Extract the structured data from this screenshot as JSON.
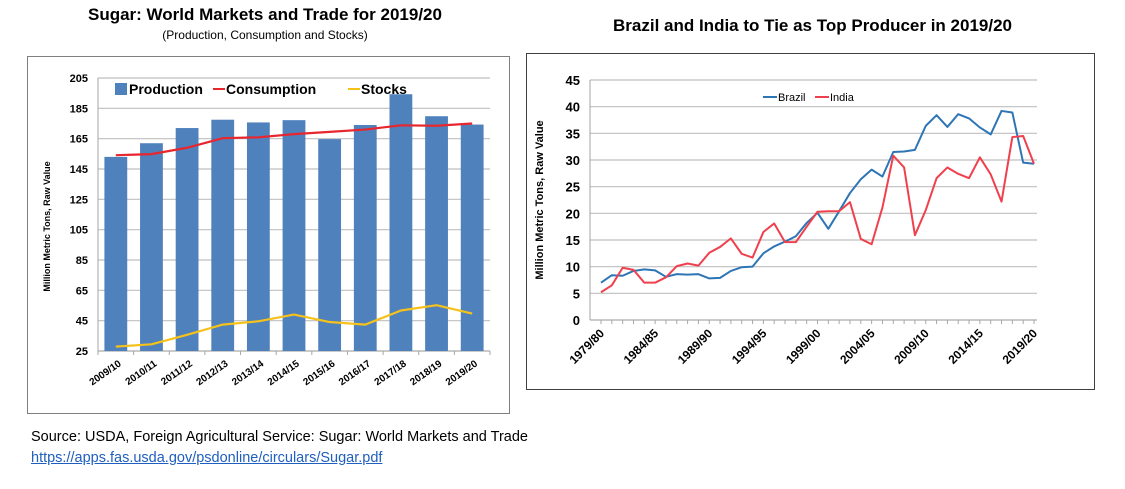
{
  "chart_data": [
    {
      "type": "bar",
      "title": "Sugar: World Markets and Trade for 2019/20",
      "subtitle": "(Production, Consumption and Stocks)",
      "xlabel": "",
      "ylabel": "Million Metric Tons, Raw Value",
      "ylim": [
        25,
        205
      ],
      "yticks": [
        25,
        45,
        65,
        85,
        105,
        125,
        145,
        165,
        185,
        205
      ],
      "grid": true,
      "legend_position": "top",
      "categories": [
        "2009/10",
        "2010/11",
        "2011/12",
        "2012/13",
        "2013/14",
        "2014/15",
        "2015/16",
        "2016/17",
        "2017/18",
        "2018/19",
        "2019/20"
      ],
      "series": [
        {
          "name": "Production",
          "type": "bar",
          "color": "#4f81bd",
          "values": [
            153,
            162,
            172,
            177.5,
            175.7,
            177.2,
            164.7,
            174,
            194.3,
            179.8,
            174.3
          ]
        },
        {
          "name": "Consumption",
          "type": "line",
          "color": "#e8262e",
          "values": [
            154.1,
            154.8,
            159,
            165.3,
            165.9,
            168,
            169.5,
            171,
            173.8,
            173.5,
            175
          ]
        },
        {
          "name": "Stocks",
          "type": "line",
          "color": "#f5c21b",
          "values": [
            27.9,
            29.4,
            35.7,
            42.4,
            44.6,
            49,
            44.1,
            42.4,
            51.7,
            55.2,
            49.7
          ]
        }
      ]
    },
    {
      "type": "line",
      "title": "Brazil and India to Tie as Top Producer in 2019/20",
      "xlabel": "",
      "ylabel": "Million Metric Tons, Raw Value",
      "ylim": [
        0,
        45
      ],
      "yticks": [
        0,
        5,
        10,
        15,
        20,
        25,
        30,
        35,
        40,
        45
      ],
      "grid": true,
      "legend_position": "top-center",
      "x": [
        "1979/80",
        "1980/81",
        "1981/82",
        "1982/83",
        "1983/84",
        "1984/85",
        "1985/86",
        "1986/87",
        "1987/88",
        "1988/89",
        "1989/90",
        "1990/91",
        "1991/92",
        "1992/93",
        "1993/94",
        "1994/95",
        "1995/96",
        "1996/97",
        "1997/98",
        "1998/99",
        "1999/00",
        "2000/01",
        "2001/02",
        "2002/03",
        "2003/04",
        "2004/05",
        "2005/06",
        "2006/07",
        "2007/08",
        "2008/09",
        "2009/10",
        "2010/11",
        "2011/12",
        "2012/13",
        "2013/14",
        "2014/15",
        "2015/16",
        "2016/17",
        "2017/18",
        "2018/19",
        "2019/20"
      ],
      "xtick_labels": [
        "1979/80",
        "1984/85",
        "1989/90",
        "1994/95",
        "1999/00",
        "2004/05",
        "2009/10",
        "2014/15",
        "2019/20"
      ],
      "series": [
        {
          "name": "Brazil",
          "color": "#2e75b6",
          "values": [
            7.0,
            8.4,
            8.3,
            9.2,
            9.5,
            9.3,
            8.1,
            8.6,
            8.5,
            8.6,
            7.8,
            7.9,
            9.2,
            9.9,
            10.0,
            12.5,
            13.8,
            14.7,
            15.7,
            18.2,
            20.1,
            17.1,
            20.4,
            23.8,
            26.4,
            28.2,
            26.9,
            31.5,
            31.6,
            31.9,
            36.4,
            38.4,
            36.2,
            38.6,
            37.8,
            36.1,
            34.8,
            39.2,
            38.9,
            29.5,
            29.3
          ]
        },
        {
          "name": "India",
          "color": "#f0404d",
          "values": [
            5.2,
            6.5,
            9.8,
            9.4,
            7.0,
            7.0,
            8.0,
            10.1,
            10.6,
            10.2,
            12.6,
            13.7,
            15.3,
            12.4,
            11.7,
            16.5,
            18.1,
            14.6,
            14.6,
            17.5,
            20.3,
            20.4,
            20.4,
            22.1,
            15.2,
            14.2,
            21.1,
            30.8,
            28.6,
            15.9,
            20.6,
            26.6,
            28.6,
            27.4,
            26.6,
            30.5,
            27.3,
            22.2,
            34.3,
            34.5,
            29.3
          ]
        }
      ]
    }
  ],
  "footer": {
    "source": "Source: USDA, Foreign Agricultural Service:  Sugar: World Markets and Trade",
    "link": "https://apps.fas.usda.gov/psdonline/circulars/Sugar.pdf"
  }
}
